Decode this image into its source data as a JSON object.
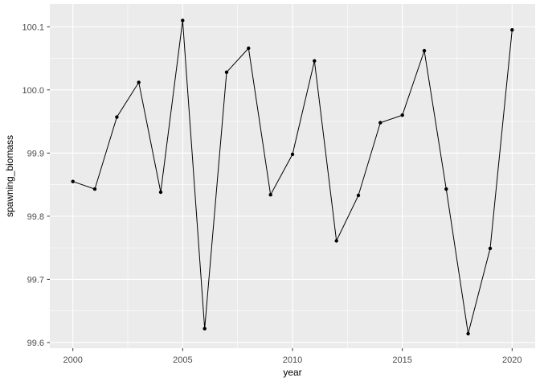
{
  "chart_data": {
    "type": "line",
    "title": "",
    "xlabel": "year",
    "ylabel": "spawning_biomass",
    "x": [
      2000,
      2001,
      2002,
      2003,
      2004,
      2005,
      2006,
      2007,
      2008,
      2009,
      2010,
      2011,
      2012,
      2013,
      2014,
      2015,
      2016,
      2017,
      2018,
      2019,
      2020
    ],
    "series": [
      {
        "name": "spawning_biomass",
        "values": [
          99.855,
          99.843,
          99.957,
          100.012,
          99.838,
          100.11,
          99.622,
          100.028,
          100.066,
          99.834,
          99.898,
          100.046,
          99.761,
          99.833,
          99.948,
          99.96,
          100.062,
          99.843,
          99.614,
          99.749,
          100.095
        ]
      }
    ],
    "xlim": [
      1998.95,
      2021.05
    ],
    "ylim": [
      99.591,
      100.136
    ],
    "x_ticks": {
      "values": [
        2000,
        2005,
        2010,
        2015,
        2020
      ],
      "labels": [
        "2000",
        "2005",
        "2010",
        "2015",
        "2020"
      ]
    },
    "y_ticks": {
      "values": [
        99.6,
        99.7,
        99.8,
        99.9,
        100.0,
        100.1
      ],
      "labels": [
        "99.6",
        "99.7",
        "99.8",
        "99.9",
        "100.0",
        "100.1"
      ]
    },
    "x_minor_ticks": [
      2002.5,
      2007.5,
      2012.5,
      2017.5
    ],
    "y_minor_ticks": [
      99.65,
      99.75,
      99.85,
      99.95,
      100.05
    ],
    "grid": true,
    "legend": false
  },
  "style": {
    "panel_bg": "#EBEBEB",
    "grid_color": "#FFFFFF",
    "line_color": "#000000",
    "point_color": "#000000",
    "tick_mark_color": "#333333",
    "tick_label_color": "#4D4D4D",
    "axis_title_color": "#000000"
  }
}
